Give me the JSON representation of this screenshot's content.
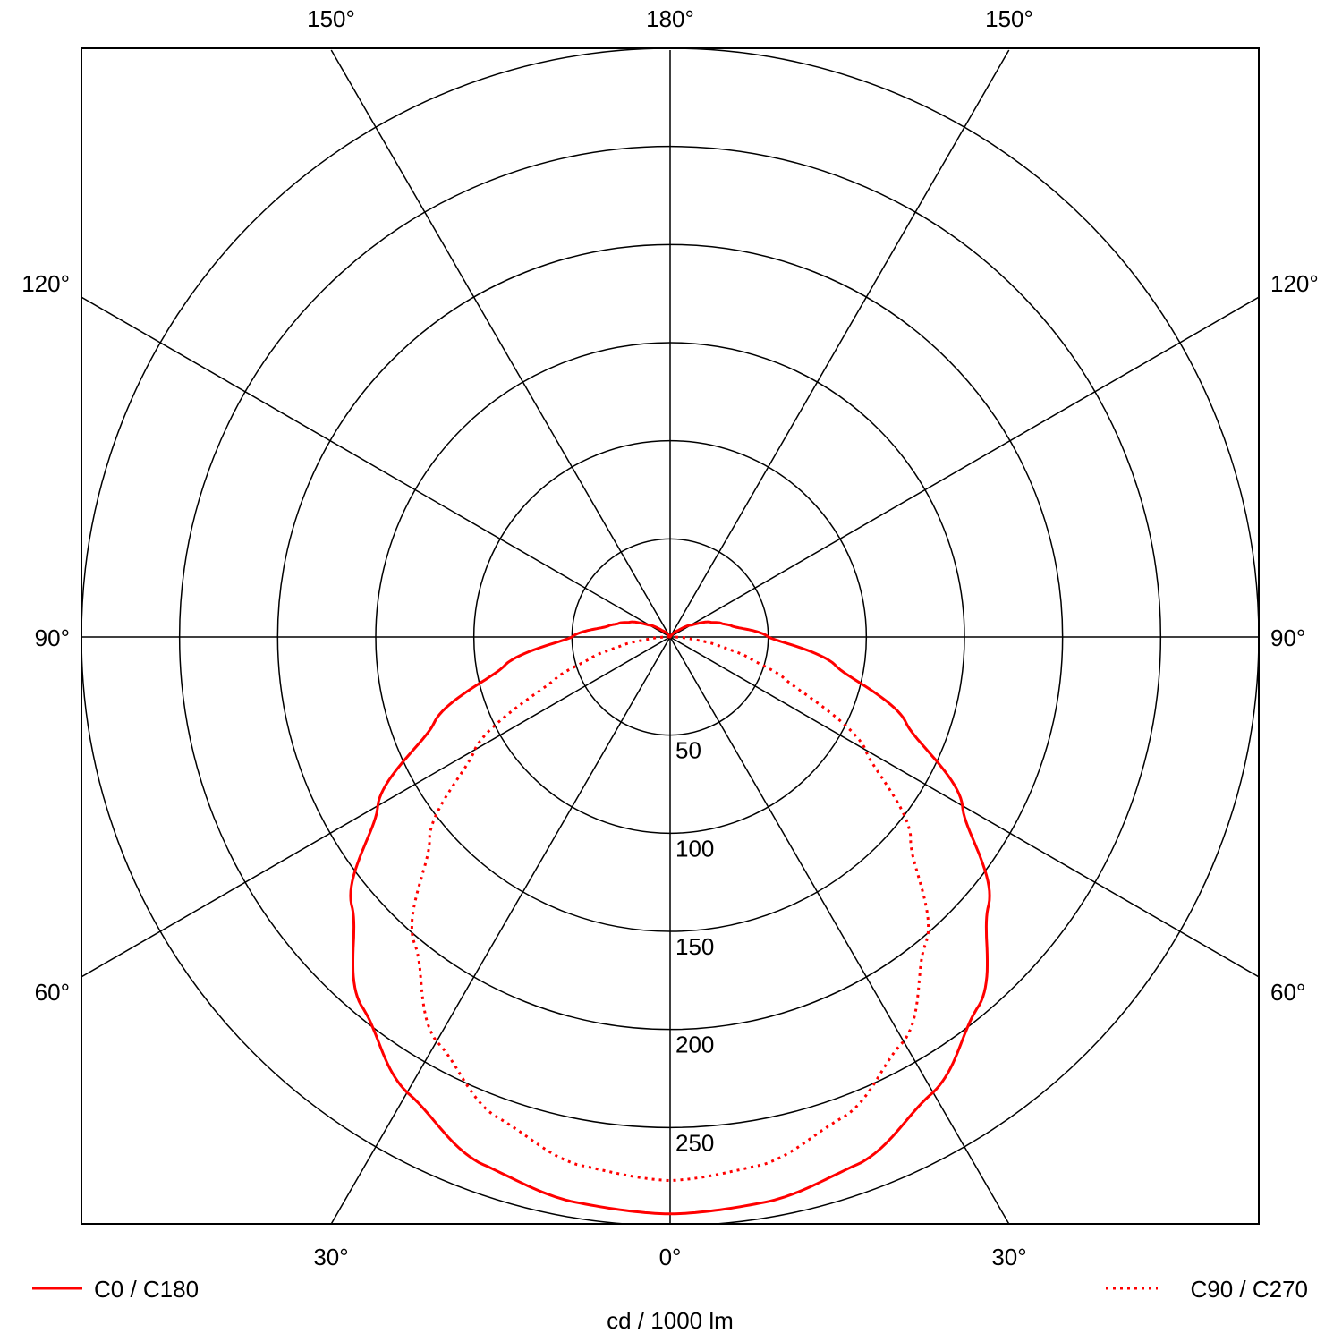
{
  "chart_data": {
    "type": "polar",
    "title": "",
    "unit_label": "cd / 1000 lm",
    "radial_range": [
      0,
      300
    ],
    "radial_ticks": [
      50,
      100,
      150,
      200,
      250
    ],
    "radial_tick_labels": [
      "50",
      "100",
      "150",
      "200",
      "250"
    ],
    "grid": true,
    "angle_labels": {
      "top": [
        "150°",
        "180°",
        "150°"
      ],
      "left": [
        "120°",
        "90°",
        "60°"
      ],
      "right": [
        "120°",
        "90°",
        "60°"
      ],
      "bottom": [
        "30°",
        "0°",
        "30°"
      ]
    },
    "legend_placement": "bottom",
    "series": [
      {
        "name": "C0 / C180",
        "style": "solid",
        "color": "#ff0000",
        "angles": [
          0,
          10,
          20,
          30,
          40,
          50,
          60,
          70,
          80,
          90,
          100,
          105,
          110,
          120,
          130,
          140,
          150,
          180
        ],
        "values": [
          294,
          292,
          285,
          268,
          245,
          212,
          172,
          128,
          86,
          50,
          32,
          27,
          22,
          12,
          5,
          2,
          0,
          0
        ]
      },
      {
        "name": "C90 / C270",
        "style": "dotted",
        "color": "#ff0000",
        "angles": [
          0,
          10,
          20,
          30,
          40,
          50,
          60,
          70,
          75,
          80,
          85,
          90,
          95,
          180
        ],
        "values": [
          277,
          273,
          260,
          238,
          203,
          160,
          115,
          62,
          42,
          25,
          10,
          2,
          0,
          0
        ]
      }
    ]
  }
}
